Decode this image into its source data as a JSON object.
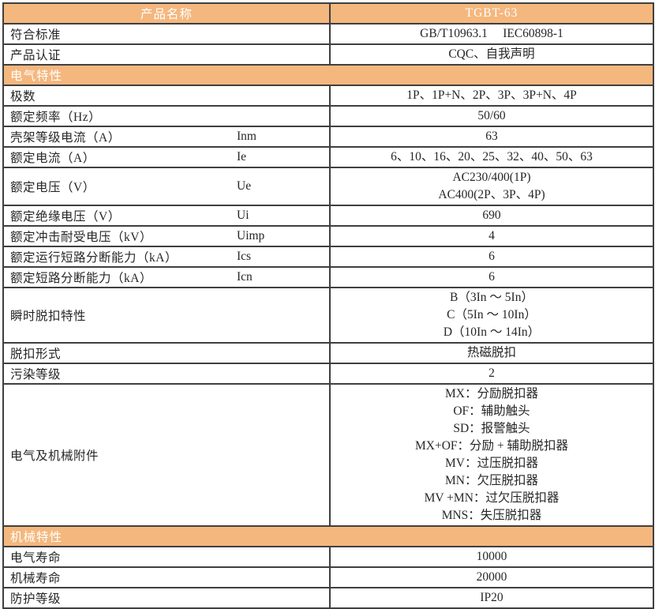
{
  "colors": {
    "accent_orange": "#f4b77e",
    "header_text": "#ffffff",
    "body_text": "#262626",
    "border": "#3f3f3f"
  },
  "title_row": {
    "label": "产品名称",
    "value": "TGBT-63"
  },
  "rows": [
    {
      "type": "data",
      "label": "符合标准",
      "value": "GB/T10963.1　 IEC60898-1"
    },
    {
      "type": "data",
      "label": "产品认证",
      "value": "CQC、自我声明"
    },
    {
      "type": "section",
      "label": "电气特性"
    },
    {
      "type": "data",
      "label": "极数",
      "value": "1P、1P+N、2P、3P、3P+N、4P"
    },
    {
      "type": "data",
      "label": "额定频率（Hz）",
      "value": "50/60"
    },
    {
      "type": "data",
      "label": "壳架等级电流（A）",
      "symbol": "Inm",
      "value": "63"
    },
    {
      "type": "data",
      "label": "额定电流（A）",
      "symbol": "Ie",
      "value": "6、10、16、20、25、32、40、50、63"
    },
    {
      "type": "data",
      "label": "额定电压（V）",
      "symbol": "Ue",
      "value_lines": [
        "AC230/400(1P)",
        "AC400(2P、3P、4P)"
      ]
    },
    {
      "type": "data",
      "label": "额定绝缘电压（V）",
      "symbol": "Ui",
      "value": "690"
    },
    {
      "type": "data",
      "label": "额定冲击耐受电压（kV）",
      "symbol": "Uimp",
      "value": "4"
    },
    {
      "type": "data",
      "label": "额定运行短路分断能力（kA）",
      "symbol": "Ics",
      "value": "6"
    },
    {
      "type": "data",
      "label": "额定短路分断能力（kA）",
      "symbol": "Icn",
      "value": "6"
    },
    {
      "type": "data",
      "label": "瞬时脱扣特性",
      "value_lines": [
        "B（3In ～ 5In）",
        "C（5In ～ 10In）",
        "D（10In ～ 14In）"
      ]
    },
    {
      "type": "data",
      "label": "脱扣形式",
      "value": "热磁脱扣"
    },
    {
      "type": "data",
      "label": "污染等级",
      "value": "2"
    },
    {
      "type": "data",
      "label": "电气及机械附件",
      "value_lines": [
        "MX：分励脱扣器",
        "OF：辅助触头",
        "SD：报警触头",
        "MX+OF：分励 + 辅助脱扣器",
        "MV：过压脱扣器",
        "MN：欠压脱扣器",
        "MV +MN：过欠压脱扣器",
        "MNS：失压脱扣器"
      ]
    },
    {
      "type": "section",
      "label": "机械特性"
    },
    {
      "type": "data",
      "label": "电气寿命",
      "value": "10000"
    },
    {
      "type": "data",
      "label": "机械寿命",
      "value": "20000"
    },
    {
      "type": "data",
      "label": "防护等级",
      "value": "IP20"
    }
  ]
}
